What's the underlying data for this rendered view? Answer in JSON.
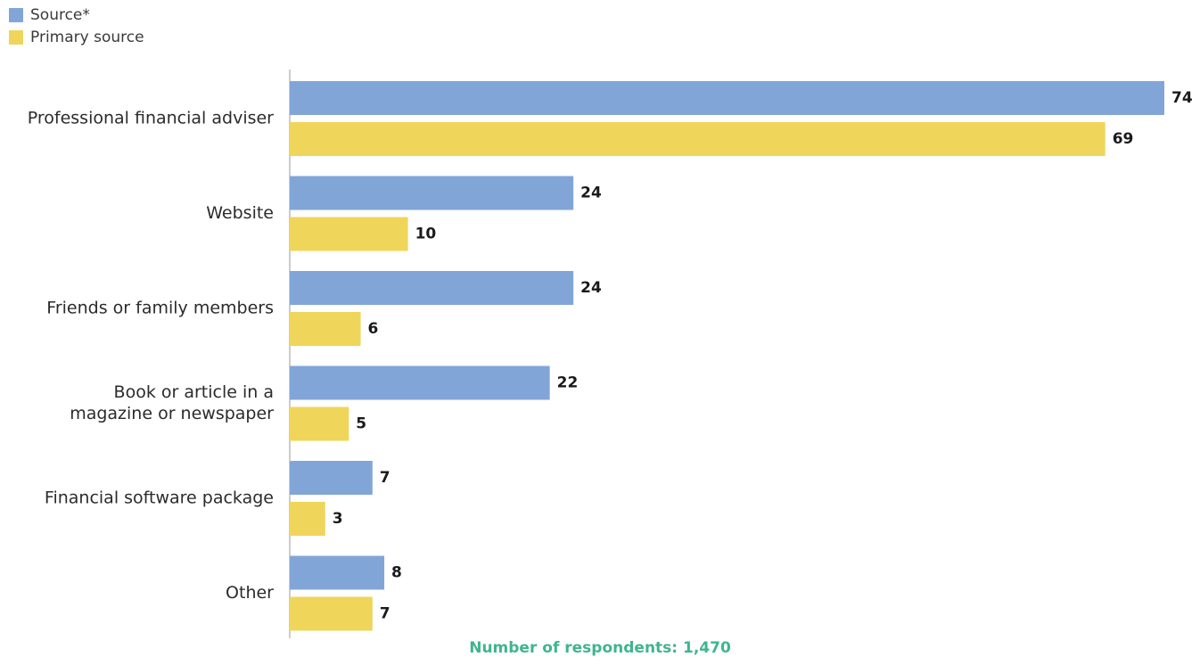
{
  "chart_data": {
    "type": "bar",
    "orientation": "horizontal",
    "categories": [
      "Professional financial adviser",
      "Website",
      "Friends or family members",
      "Book or article in a|magazine or newspaper",
      "Financial software package",
      "Other"
    ],
    "series": [
      {
        "name": "Source*",
        "values": [
          74,
          24,
          24,
          22,
          7,
          8
        ],
        "color": "#82a5d8"
      },
      {
        "name": "Primary source",
        "values": [
          69,
          10,
          6,
          5,
          3,
          7
        ],
        "color": "#efd55a"
      }
    ],
    "xlim": [
      0,
      74
    ],
    "grid": false,
    "legend_position": "top-left",
    "footnote": "Number of respondents: 1,470"
  }
}
